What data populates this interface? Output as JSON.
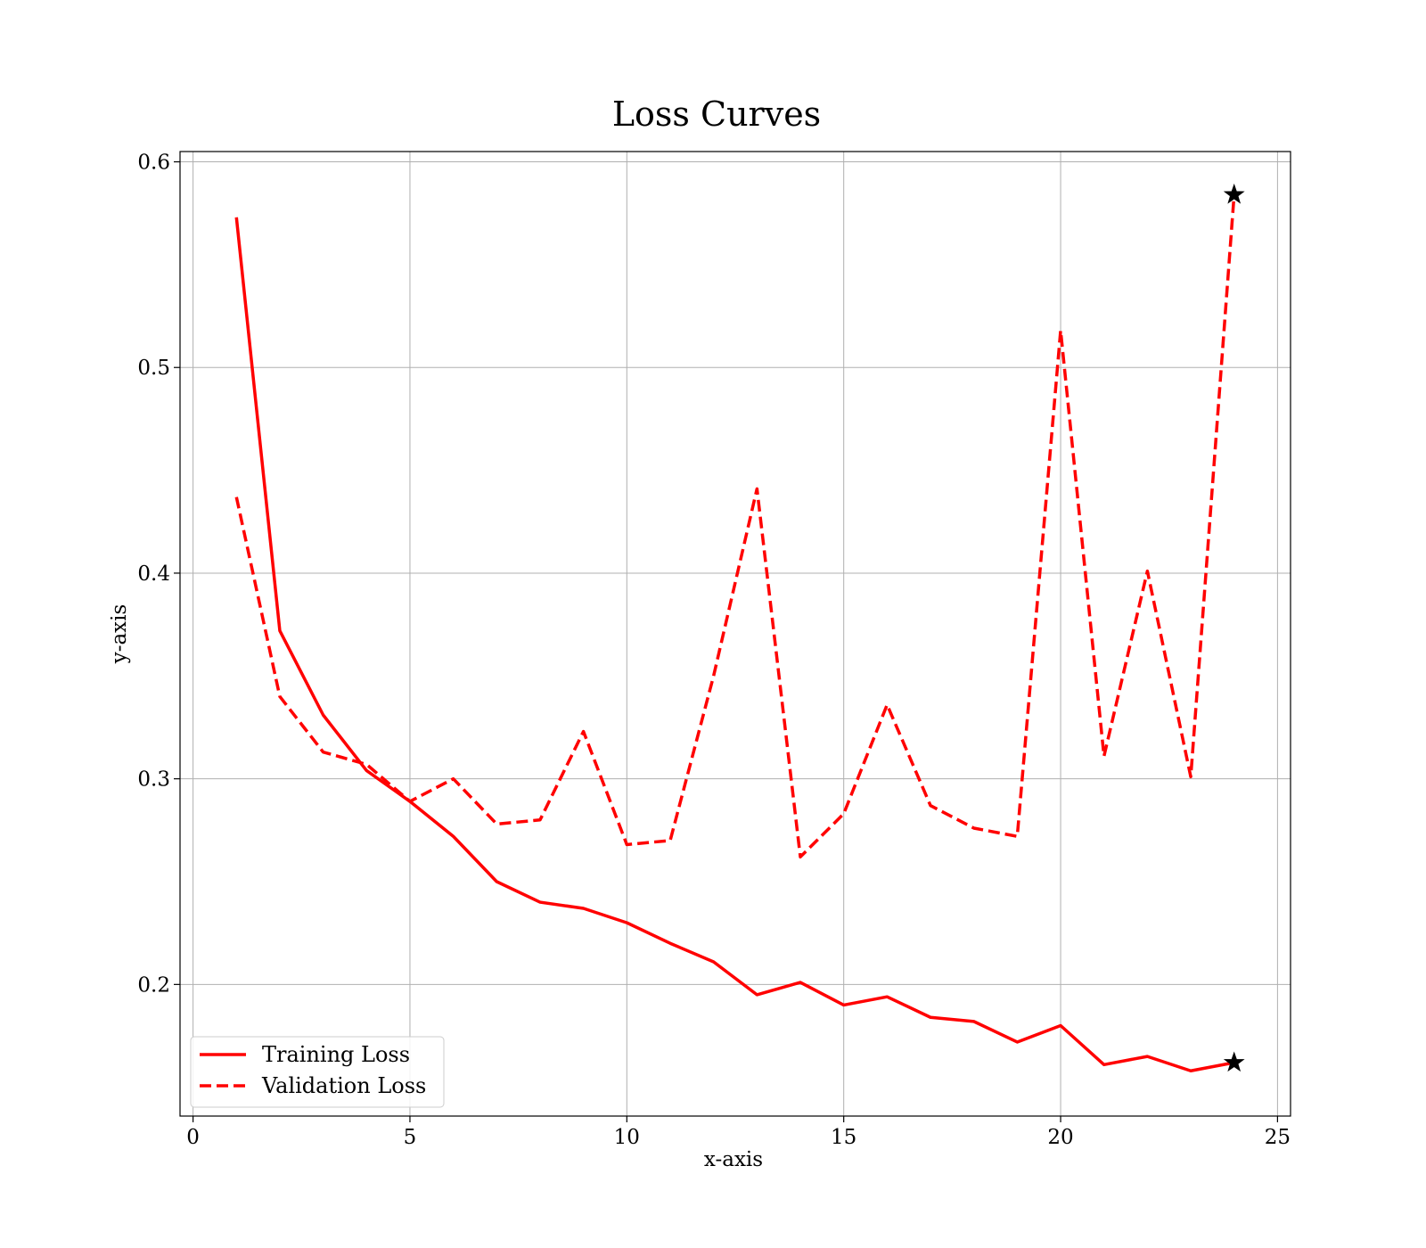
{
  "chart_data": {
    "type": "line",
    "title": "Loss Curves",
    "xlabel": "x-axis",
    "ylabel": "y-axis",
    "xlim": [
      -0.3,
      25.3
    ],
    "ylim": [
      0.136,
      0.605
    ],
    "xticks": [
      0,
      5,
      10,
      15,
      20,
      25
    ],
    "yticks": [
      0.2,
      0.3,
      0.4,
      0.5,
      0.6
    ],
    "xtick_labels": [
      "0",
      "5",
      "10",
      "15",
      "20",
      "25"
    ],
    "ytick_labels": [
      "0.2",
      "0.3",
      "0.4",
      "0.5",
      "0.6"
    ],
    "grid": true,
    "legend_position": "lower-left",
    "x": [
      1,
      2,
      3,
      4,
      5,
      6,
      7,
      8,
      9,
      10,
      11,
      12,
      13,
      14,
      15,
      16,
      17,
      18,
      19,
      20,
      21,
      22,
      23,
      24
    ],
    "series": [
      {
        "name": "Training Loss",
        "style": "solid",
        "color": "#ff0000",
        "values": [
          0.573,
          0.372,
          0.331,
          0.304,
          0.289,
          0.272,
          0.25,
          0.24,
          0.237,
          0.23,
          0.22,
          0.211,
          0.195,
          0.201,
          0.19,
          0.194,
          0.184,
          0.182,
          0.172,
          0.18,
          0.161,
          0.165,
          0.158,
          0.162
        ],
        "marker": {
          "symbol": "star",
          "x": 24,
          "y": 0.162
        }
      },
      {
        "name": "Validation Loss",
        "style": "dashed",
        "color": "#ff0000",
        "values": [
          0.437,
          0.34,
          0.313,
          0.307,
          0.289,
          0.3,
          0.278,
          0.28,
          0.323,
          0.268,
          0.27,
          0.35,
          0.441,
          0.262,
          0.283,
          0.336,
          0.287,
          0.276,
          0.272,
          0.518,
          0.311,
          0.401,
          0.301,
          0.584
        ],
        "marker": {
          "symbol": "star",
          "x": 24,
          "y": 0.584
        }
      }
    ]
  }
}
